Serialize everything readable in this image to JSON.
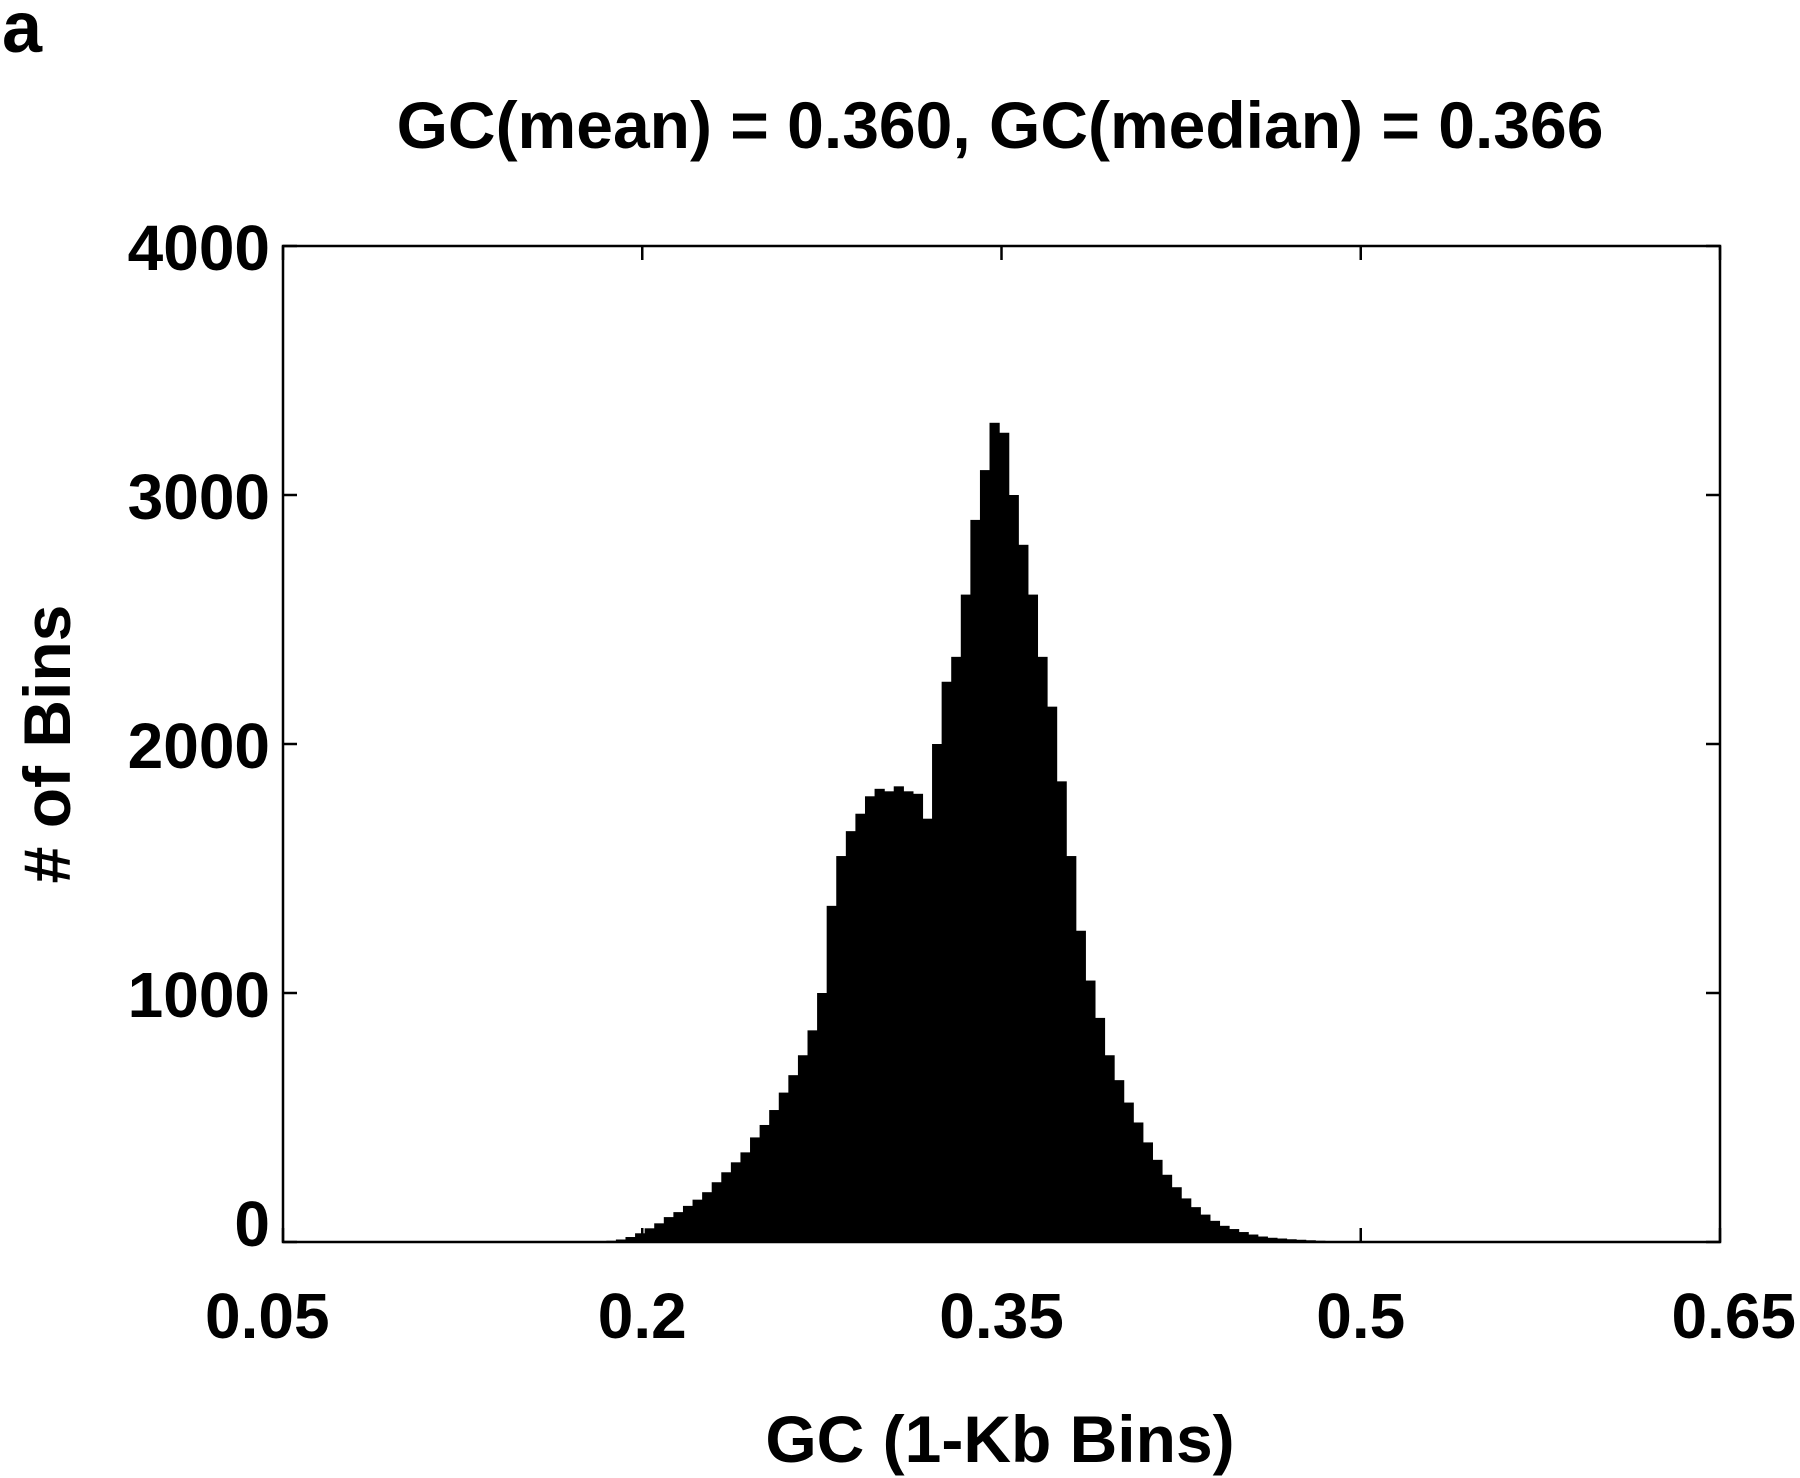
{
  "panel_label": "a",
  "chart_data": {
    "type": "bar",
    "title": "GC(mean) = 0.360, GC(median) = 0.366",
    "xlabel": "GC (1-Kb Bins)",
    "ylabel": "# of Bins",
    "xlim": [
      0.05,
      0.65
    ],
    "ylim": [
      0,
      4000
    ],
    "xticks": [
      0.05,
      0.2,
      0.35,
      0.5,
      0.65
    ],
    "xtick_labels": [
      "0.05",
      "0.2",
      "0.35",
      "0.5",
      "0.65"
    ],
    "yticks": [
      0,
      1000,
      2000,
      3000,
      4000
    ],
    "ytick_labels": [
      "0",
      "1000",
      "2000",
      "3000",
      "4000"
    ],
    "bar_color": "#000000",
    "grid": false,
    "x": [
      0.187,
      0.191,
      0.195,
      0.199,
      0.203,
      0.207,
      0.211,
      0.215,
      0.219,
      0.223,
      0.227,
      0.231,
      0.235,
      0.239,
      0.243,
      0.247,
      0.251,
      0.255,
      0.259,
      0.263,
      0.267,
      0.271,
      0.275,
      0.279,
      0.283,
      0.287,
      0.291,
      0.295,
      0.299,
      0.303,
      0.307,
      0.311,
      0.315,
      0.319,
      0.323,
      0.327,
      0.331,
      0.335,
      0.339,
      0.343,
      0.347,
      0.351,
      0.355,
      0.359,
      0.363,
      0.367,
      0.371,
      0.375,
      0.379,
      0.383,
      0.387,
      0.391,
      0.395,
      0.399,
      0.403,
      0.407,
      0.411,
      0.415,
      0.419,
      0.423,
      0.427,
      0.431,
      0.435,
      0.439,
      0.443,
      0.447,
      0.451,
      0.455,
      0.459,
      0.463,
      0.467,
      0.471,
      0.475,
      0.479,
      0.483,
      0.487,
      0.491,
      0.495,
      0.499,
      0.503,
      0.507,
      0.511,
      0.515,
      0.519,
      0.523,
      0.527
    ],
    "values": [
      5,
      10,
      20,
      35,
      55,
      75,
      100,
      120,
      145,
      170,
      200,
      240,
      280,
      320,
      360,
      420,
      470,
      530,
      600,
      670,
      750,
      850,
      1000,
      1350,
      1550,
      1650,
      1720,
      1790,
      1820,
      1810,
      1830,
      1810,
      1800,
      1700,
      2000,
      2250,
      2350,
      2600,
      2900,
      3100,
      3290,
      3250,
      3000,
      2800,
      2600,
      2350,
      2150,
      1850,
      1550,
      1250,
      1050,
      900,
      750,
      650,
      560,
      480,
      400,
      330,
      270,
      220,
      175,
      140,
      110,
      85,
      65,
      52,
      40,
      30,
      22,
      17,
      14,
      11,
      9,
      7,
      5,
      4,
      3,
      2,
      2,
      1,
      1,
      1,
      0,
      0,
      0,
      0
    ]
  }
}
